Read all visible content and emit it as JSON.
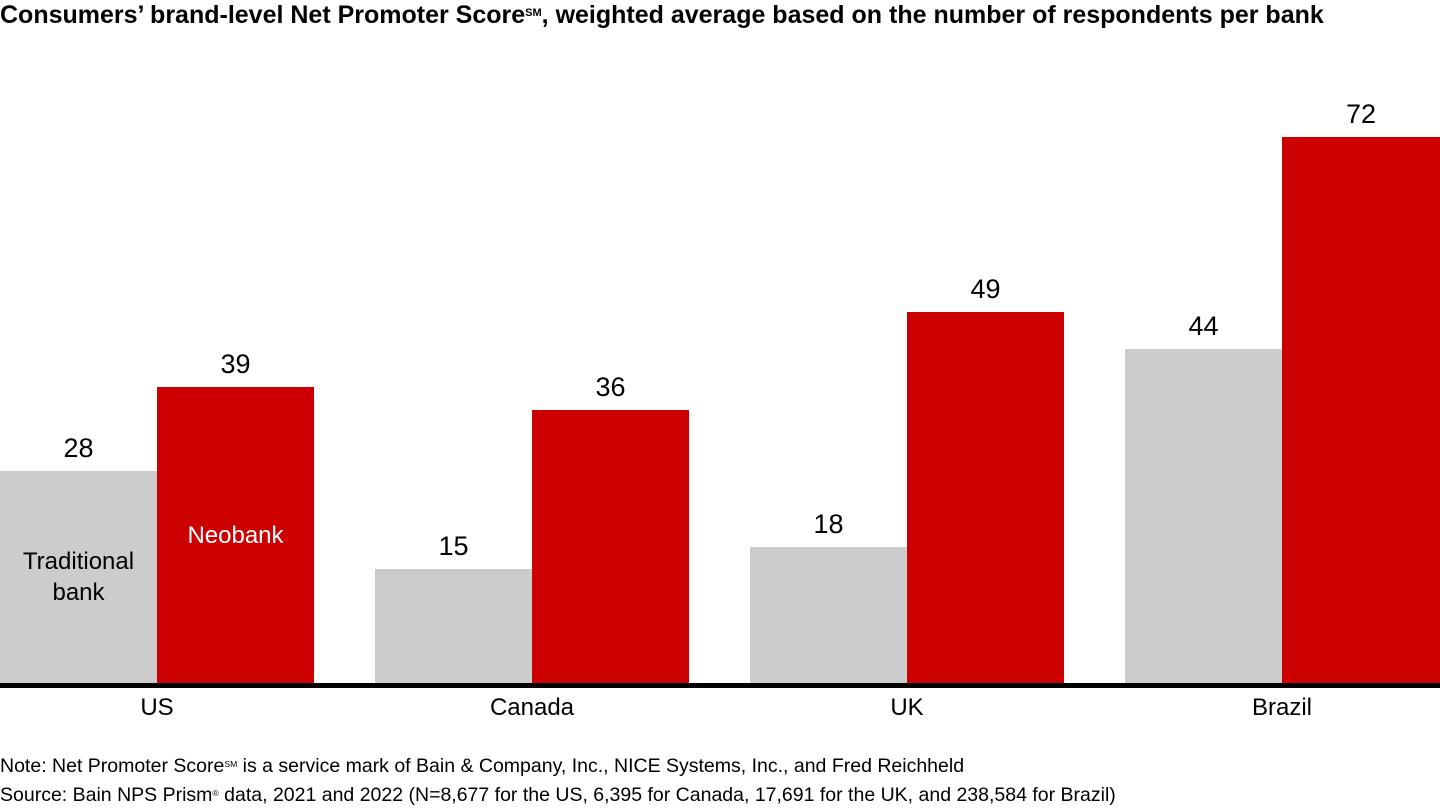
{
  "header": {
    "title_main": "Consumers’ brand-level Net Promoter Score",
    "title_sup": "SM",
    "title_rest": ", weighted average based on the number of respondents per bank"
  },
  "footnotes": {
    "note_main": "Note: Net Promoter Score",
    "note_sup": "SM",
    "note_rest": " is a service mark of Bain & Company, Inc., NICE Systems, Inc., and Fred Reichheld",
    "source_main": "Source: Bain NPS Prism",
    "source_sup": "®",
    "source_rest": " data, 2021 and 2022 (N=8,677 for the US, 6,395 for Canada, 17,691 for the UK, and 238,584 for Brazil)"
  },
  "chart_data": {
    "type": "bar",
    "title": "Consumers’ brand-level Net Promoter Score (SM), weighted average based on the number of respondents per bank",
    "categories": [
      "US",
      "Canada",
      "UK",
      "Brazil"
    ],
    "series": [
      {
        "name": "Traditional bank",
        "color": "#cccccc",
        "label_color": "#000000",
        "values": [
          28,
          15,
          18,
          44
        ]
      },
      {
        "name": "Neobank",
        "color": "#cc0000",
        "label_color": "#ffffff",
        "values": [
          39,
          36,
          49,
          72
        ]
      }
    ],
    "ylim": [
      0,
      72
    ],
    "grid": false,
    "legend_position": "series labels shown inside first group of bars",
    "value_labels": "above each bar",
    "axis_line_color": "#000000",
    "background_color": "#ffffff"
  }
}
